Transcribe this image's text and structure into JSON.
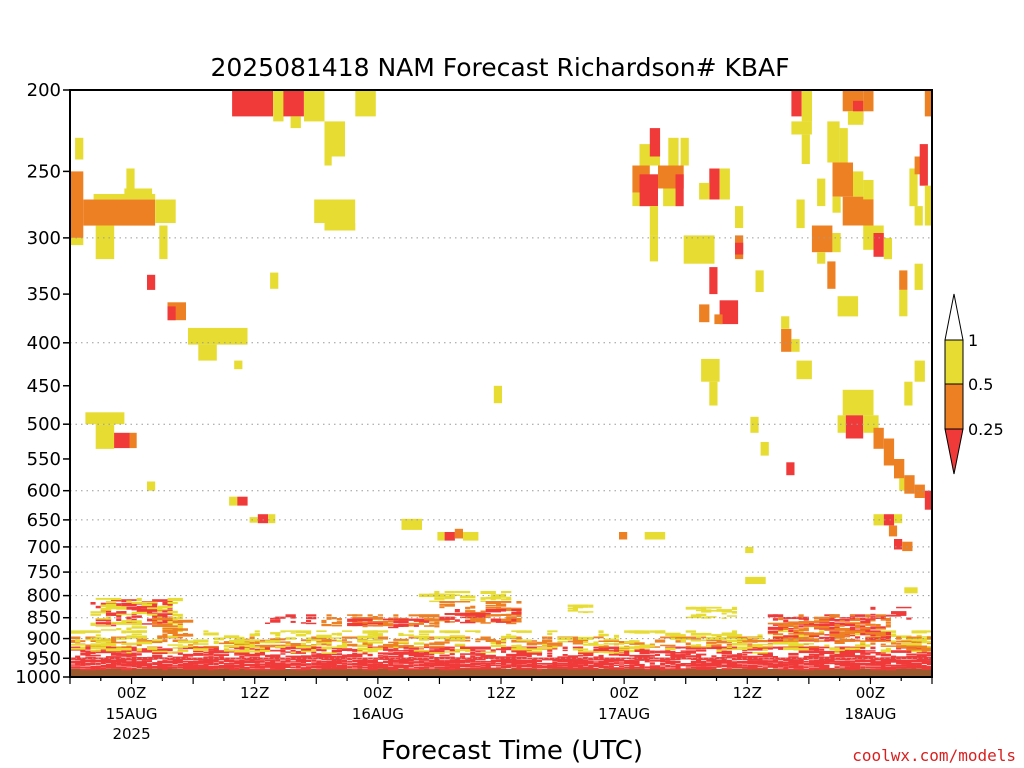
{
  "chart_data": {
    "type": "heatmap",
    "title": "2025081418 NAM Forecast Richardson# KBAF",
    "xlabel": "Forecast Time (UTC)",
    "ylabel": "",
    "credit": "coolwx.com/models",
    "y_axis": {
      "scale": "log-pressure",
      "unit": "hPa",
      "range": [
        1000,
        200
      ],
      "ticks": [
        200,
        250,
        300,
        350,
        400,
        450,
        500,
        550,
        600,
        650,
        700,
        750,
        800,
        850,
        900,
        950,
        1000
      ]
    },
    "x_axis": {
      "unit": "hours after 2025081418",
      "range": [
        0,
        84
      ],
      "ticks": [
        {
          "hour": 6,
          "label": "00Z",
          "sub": "15AUG",
          "sub2": "2025"
        },
        {
          "hour": 18,
          "label": "12Z",
          "sub": "",
          "sub2": ""
        },
        {
          "hour": 30,
          "label": "00Z",
          "sub": "16AUG",
          "sub2": ""
        },
        {
          "hour": 42,
          "label": "12Z",
          "sub": "",
          "sub2": ""
        },
        {
          "hour": 54,
          "label": "00Z",
          "sub": "17AUG",
          "sub2": ""
        },
        {
          "hour": 66,
          "label": "12Z",
          "sub": "",
          "sub2": ""
        },
        {
          "hour": 78,
          "label": "00Z",
          "sub": "18AUG",
          "sub2": ""
        }
      ]
    },
    "gridlines": [
      300,
      400,
      500,
      600,
      650,
      700,
      750,
      800,
      850,
      900,
      950
    ],
    "colorbar": {
      "levels": [
        "0.25",
        "0.5",
        "1"
      ],
      "colors": {
        "lt025": "#f03a3a",
        "b025_05": "#ee8024",
        "b05_1": "#e6dc32",
        "gt1": "#ffffff"
      }
    },
    "category_colors": {
      "r": "#f03a3a",
      "o": "#ee8024",
      "y": "#e6dc32",
      "ground": "#9b5a2e"
    },
    "ground_pressure": 978,
    "patches": [
      {
        "t0": 0,
        "t1": 1.3,
        "p0": 250,
        "p1": 300,
        "c": "o"
      },
      {
        "t0": 0,
        "t1": 1.3,
        "p0": 300,
        "p1": 306,
        "c": "y"
      },
      {
        "t0": 0.5,
        "t1": 1.3,
        "p0": 228,
        "p1": 242,
        "c": "y"
      },
      {
        "t0": 1.3,
        "t1": 8.3,
        "p0": 270,
        "p1": 290,
        "c": "o"
      },
      {
        "t0": 2.3,
        "t1": 8.3,
        "p0": 266,
        "p1": 270,
        "c": "y"
      },
      {
        "t0": 5.3,
        "t1": 8.0,
        "p0": 262,
        "p1": 266,
        "c": "y"
      },
      {
        "t0": 5.5,
        "t1": 6.3,
        "p0": 248,
        "p1": 262,
        "c": "y"
      },
      {
        "t0": 8.3,
        "t1": 10.3,
        "p0": 270,
        "p1": 288,
        "c": "y"
      },
      {
        "t0": 2.5,
        "t1": 4.3,
        "p0": 290,
        "p1": 318,
        "c": "y"
      },
      {
        "t0": 8.7,
        "t1": 9.5,
        "p0": 290,
        "p1": 318,
        "c": "y"
      },
      {
        "t0": 7.5,
        "t1": 8.3,
        "p0": 332,
        "p1": 346,
        "c": "r"
      },
      {
        "t0": 9.5,
        "t1": 11.3,
        "p0": 358,
        "p1": 376,
        "c": "o"
      },
      {
        "t0": 9.5,
        "t1": 10.3,
        "p0": 362,
        "p1": 376,
        "c": "r"
      },
      {
        "t0": 11.5,
        "t1": 17.3,
        "p0": 384,
        "p1": 402,
        "c": "y"
      },
      {
        "t0": 12.5,
        "t1": 14.3,
        "p0": 402,
        "p1": 420,
        "c": "y"
      },
      {
        "t0": 16.0,
        "t1": 16.8,
        "p0": 420,
        "p1": 430,
        "c": "y"
      },
      {
        "t0": 1.5,
        "t1": 5.3,
        "p0": 484,
        "p1": 500,
        "c": "y"
      },
      {
        "t0": 2.5,
        "t1": 4.3,
        "p0": 500,
        "p1": 535,
        "c": "y"
      },
      {
        "t0": 4.3,
        "t1": 5.8,
        "p0": 512,
        "p1": 534,
        "c": "r"
      },
      {
        "t0": 5.8,
        "t1": 6.5,
        "p0": 512,
        "p1": 534,
        "c": "o"
      },
      {
        "t0": 7.5,
        "t1": 8.3,
        "p0": 585,
        "p1": 600,
        "c": "y"
      },
      {
        "t0": 15.5,
        "t1": 16.3,
        "p0": 610,
        "p1": 625,
        "c": "y"
      },
      {
        "t0": 16.3,
        "t1": 17.3,
        "p0": 610,
        "p1": 625,
        "c": "r"
      },
      {
        "t0": 17.5,
        "t1": 18.3,
        "p0": 645,
        "p1": 655,
        "c": "y"
      },
      {
        "t0": 18.3,
        "t1": 19.3,
        "p0": 640,
        "p1": 656,
        "c": "r"
      },
      {
        "t0": 19.3,
        "t1": 20.0,
        "p0": 640,
        "p1": 656,
        "c": "y"
      },
      {
        "t0": 15.8,
        "t1": 19.8,
        "p0": 200,
        "p1": 215,
        "c": "r"
      },
      {
        "t0": 19.8,
        "t1": 20.8,
        "p0": 200,
        "p1": 218,
        "c": "y"
      },
      {
        "t0": 20.8,
        "t1": 22.8,
        "p0": 200,
        "p1": 215,
        "c": "r"
      },
      {
        "t0": 21.5,
        "t1": 22.5,
        "p0": 215,
        "p1": 222,
        "c": "y"
      },
      {
        "t0": 22.8,
        "t1": 24.8,
        "p0": 200,
        "p1": 218,
        "c": "y"
      },
      {
        "t0": 27.8,
        "t1": 29.8,
        "p0": 200,
        "p1": 215,
        "c": "y"
      },
      {
        "t0": 24.8,
        "t1": 26.8,
        "p0": 218,
        "p1": 240,
        "c": "y"
      },
      {
        "t0": 24.8,
        "t1": 25.5,
        "p0": 240,
        "p1": 246,
        "c": "y"
      },
      {
        "t0": 23.8,
        "t1": 27.8,
        "p0": 270,
        "p1": 288,
        "c": "y"
      },
      {
        "t0": 24.8,
        "t1": 27.8,
        "p0": 288,
        "p1": 294,
        "c": "y"
      },
      {
        "t0": 19.5,
        "t1": 20.3,
        "p0": 330,
        "p1": 345,
        "c": "y"
      },
      {
        "t0": 32.3,
        "t1": 34.3,
        "p0": 648,
        "p1": 668,
        "c": "y"
      },
      {
        "t0": 35.8,
        "t1": 36.5,
        "p0": 672,
        "p1": 688,
        "c": "y"
      },
      {
        "t0": 36.5,
        "t1": 37.5,
        "p0": 672,
        "p1": 688,
        "c": "r"
      },
      {
        "t0": 37.5,
        "t1": 38.3,
        "p0": 666,
        "p1": 684,
        "c": "o"
      },
      {
        "t0": 38.3,
        "t1": 39.8,
        "p0": 672,
        "p1": 688,
        "c": "y"
      },
      {
        "t0": 41.3,
        "t1": 42.1,
        "p0": 450,
        "p1": 472,
        "c": "y"
      },
      {
        "t0": 53.5,
        "t1": 54.3,
        "p0": 672,
        "p1": 686,
        "c": "o"
      },
      {
        "t0": 56.0,
        "t1": 58.0,
        "p0": 672,
        "p1": 686,
        "c": "y"
      },
      {
        "t0": 55.5,
        "t1": 57.5,
        "p0": 232,
        "p1": 246,
        "c": "y"
      },
      {
        "t0": 56.5,
        "t1": 57.5,
        "p0": 222,
        "p1": 240,
        "c": "r"
      },
      {
        "t0": 54.8,
        "t1": 56.5,
        "p0": 246,
        "p1": 265,
        "c": "o"
      },
      {
        "t0": 55.5,
        "t1": 57.3,
        "p0": 252,
        "p1": 275,
        "c": "r"
      },
      {
        "t0": 57.3,
        "t1": 59.8,
        "p0": 246,
        "p1": 262,
        "c": "o"
      },
      {
        "t0": 59.0,
        "t1": 59.8,
        "p0": 252,
        "p1": 275,
        "c": "r"
      },
      {
        "t0": 57.8,
        "t1": 59.0,
        "p0": 262,
        "p1": 275,
        "c": "y"
      },
      {
        "t0": 58.3,
        "t1": 59.3,
        "p0": 228,
        "p1": 246,
        "c": "y"
      },
      {
        "t0": 59.5,
        "t1": 60.3,
        "p0": 228,
        "p1": 246,
        "c": "y"
      },
      {
        "t0": 54.8,
        "t1": 55.5,
        "p0": 265,
        "p1": 275,
        "c": "y"
      },
      {
        "t0": 56.5,
        "t1": 57.3,
        "p0": 275,
        "p1": 298,
        "c": "y"
      },
      {
        "t0": 56.5,
        "t1": 57.3,
        "p0": 298,
        "p1": 320,
        "c": "y"
      },
      {
        "t0": 62.3,
        "t1": 63.3,
        "p0": 248,
        "p1": 270,
        "c": "r"
      },
      {
        "t0": 61.3,
        "t1": 62.3,
        "p0": 258,
        "p1": 270,
        "c": "y"
      },
      {
        "t0": 63.3,
        "t1": 64.3,
        "p0": 248,
        "p1": 270,
        "c": "y"
      },
      {
        "t0": 64.8,
        "t1": 65.6,
        "p0": 275,
        "p1": 292,
        "c": "y"
      },
      {
        "t0": 59.8,
        "t1": 62.8,
        "p0": 298,
        "p1": 322,
        "c": "y"
      },
      {
        "t0": 64.8,
        "t1": 65.6,
        "p0": 298,
        "p1": 318,
        "c": "o"
      },
      {
        "t0": 64.8,
        "t1": 65.6,
        "p0": 304,
        "p1": 314,
        "c": "r"
      },
      {
        "t0": 62.3,
        "t1": 63.1,
        "p0": 325,
        "p1": 350,
        "c": "r"
      },
      {
        "t0": 61.3,
        "t1": 62.3,
        "p0": 360,
        "p1": 378,
        "c": "o"
      },
      {
        "t0": 63.3,
        "t1": 65.1,
        "p0": 356,
        "p1": 380,
        "c": "r"
      },
      {
        "t0": 62.8,
        "t1": 63.6,
        "p0": 370,
        "p1": 380,
        "c": "o"
      },
      {
        "t0": 66.8,
        "t1": 67.6,
        "p0": 328,
        "p1": 348,
        "c": "y"
      },
      {
        "t0": 61.5,
        "t1": 63.3,
        "p0": 418,
        "p1": 445,
        "c": "y"
      },
      {
        "t0": 62.3,
        "t1": 63.1,
        "p0": 445,
        "p1": 475,
        "c": "y"
      },
      {
        "t0": 66.3,
        "t1": 67.1,
        "p0": 490,
        "p1": 512,
        "c": "y"
      },
      {
        "t0": 67.3,
        "t1": 68.1,
        "p0": 525,
        "p1": 545,
        "c": "y"
      },
      {
        "t0": 69.8,
        "t1": 70.6,
        "p0": 555,
        "p1": 575,
        "c": "r"
      },
      {
        "t0": 65.8,
        "t1": 66.6,
        "p0": 700,
        "p1": 712,
        "c": "y"
      },
      {
        "t0": 65.8,
        "t1": 67.8,
        "p0": 760,
        "p1": 775,
        "c": "y"
      },
      {
        "t0": 69.3,
        "t1": 70.3,
        "p0": 385,
        "p1": 410,
        "c": "o"
      },
      {
        "t0": 69.3,
        "t1": 70.1,
        "p0": 372,
        "p1": 385,
        "c": "y"
      },
      {
        "t0": 70.3,
        "t1": 71.1,
        "p0": 396,
        "p1": 410,
        "c": "y"
      },
      {
        "t0": 70.8,
        "t1": 72.3,
        "p0": 420,
        "p1": 442,
        "c": "y"
      },
      {
        "t0": 70.3,
        "t1": 71.3,
        "p0": 200,
        "p1": 215,
        "c": "r"
      },
      {
        "t0": 71.3,
        "t1": 72.3,
        "p0": 200,
        "p1": 218,
        "c": "y"
      },
      {
        "t0": 70.3,
        "t1": 72.3,
        "p0": 218,
        "p1": 226,
        "c": "y"
      },
      {
        "t0": 71.3,
        "t1": 72.1,
        "p0": 226,
        "p1": 245,
        "c": "y"
      },
      {
        "t0": 70.8,
        "t1": 71.6,
        "p0": 270,
        "p1": 292,
        "c": "y"
      },
      {
        "t0": 72.8,
        "t1": 73.6,
        "p0": 255,
        "p1": 275,
        "c": "y"
      },
      {
        "t0": 73.8,
        "t1": 75.0,
        "p0": 218,
        "p1": 244,
        "c": "y"
      },
      {
        "t0": 75.0,
        "t1": 75.8,
        "p0": 222,
        "p1": 244,
        "c": "y"
      },
      {
        "t0": 75.3,
        "t1": 77.3,
        "p0": 200,
        "p1": 212,
        "c": "o"
      },
      {
        "t0": 76.3,
        "t1": 77.3,
        "p0": 206,
        "p1": 218,
        "c": "r"
      },
      {
        "t0": 77.3,
        "t1": 78.3,
        "p0": 200,
        "p1": 212,
        "c": "o"
      },
      {
        "t0": 75.8,
        "t1": 77.3,
        "p0": 212,
        "p1": 220,
        "c": "y"
      },
      {
        "t0": 74.3,
        "t1": 76.3,
        "p0": 244,
        "p1": 268,
        "c": "o"
      },
      {
        "t0": 76.3,
        "t1": 77.3,
        "p0": 250,
        "p1": 268,
        "c": "y"
      },
      {
        "t0": 74.3,
        "t1": 75.1,
        "p0": 268,
        "p1": 280,
        "c": "y"
      },
      {
        "t0": 75.3,
        "t1": 78.3,
        "p0": 268,
        "p1": 290,
        "c": "o"
      },
      {
        "t0": 77.3,
        "t1": 78.3,
        "p0": 256,
        "p1": 270,
        "c": "y"
      },
      {
        "t0": 72.3,
        "t1": 74.3,
        "p0": 290,
        "p1": 312,
        "c": "o"
      },
      {
        "t0": 74.3,
        "t1": 75.1,
        "p0": 296,
        "p1": 312,
        "c": "y"
      },
      {
        "t0": 72.8,
        "t1": 73.6,
        "p0": 312,
        "p1": 322,
        "c": "y"
      },
      {
        "t0": 77.3,
        "t1": 79.3,
        "p0": 290,
        "p1": 310,
        "c": "y"
      },
      {
        "t0": 78.3,
        "t1": 79.3,
        "p0": 296,
        "p1": 316,
        "c": "r"
      },
      {
        "t0": 79.3,
        "t1": 80.1,
        "p0": 300,
        "p1": 318,
        "c": "y"
      },
      {
        "t0": 73.8,
        "t1": 74.6,
        "p0": 320,
        "p1": 345,
        "c": "o"
      },
      {
        "t0": 74.8,
        "t1": 76.8,
        "p0": 352,
        "p1": 372,
        "c": "y"
      },
      {
        "t0": 80.8,
        "t1": 81.6,
        "p0": 328,
        "p1": 346,
        "c": "o"
      },
      {
        "t0": 80.8,
        "t1": 81.6,
        "p0": 346,
        "p1": 372,
        "c": "y"
      },
      {
        "t0": 82.3,
        "t1": 83.1,
        "p0": 322,
        "p1": 346,
        "c": "y"
      },
      {
        "t0": 81.8,
        "t1": 82.6,
        "p0": 248,
        "p1": 275,
        "c": "y"
      },
      {
        "t0": 82.3,
        "t1": 83.1,
        "p0": 240,
        "p1": 252,
        "c": "o"
      },
      {
        "t0": 82.8,
        "t1": 83.6,
        "p0": 232,
        "p1": 260,
        "c": "r"
      },
      {
        "t0": 83.3,
        "t1": 84.0,
        "p0": 200,
        "p1": 215,
        "c": "o"
      },
      {
        "t0": 83.3,
        "t1": 84.0,
        "p0": 260,
        "p1": 290,
        "c": "y"
      },
      {
        "t0": 82.3,
        "t1": 83.1,
        "p0": 275,
        "p1": 290,
        "c": "y"
      },
      {
        "t0": 82.3,
        "t1": 83.3,
        "p0": 420,
        "p1": 445,
        "c": "y"
      },
      {
        "t0": 81.3,
        "t1": 82.1,
        "p0": 445,
        "p1": 475,
        "c": "y"
      },
      {
        "t0": 75.3,
        "t1": 78.3,
        "p0": 455,
        "p1": 488,
        "c": "y"
      },
      {
        "t0": 74.8,
        "t1": 75.6,
        "p0": 488,
        "p1": 512,
        "c": "y"
      },
      {
        "t0": 75.6,
        "t1": 77.3,
        "p0": 488,
        "p1": 520,
        "c": "r"
      },
      {
        "t0": 77.3,
        "t1": 78.8,
        "p0": 488,
        "p1": 512,
        "c": "y"
      },
      {
        "t0": 78.3,
        "t1": 79.3,
        "p0": 505,
        "p1": 535,
        "c": "o"
      },
      {
        "t0": 79.3,
        "t1": 80.3,
        "p0": 520,
        "p1": 560,
        "c": "o"
      },
      {
        "t0": 80.3,
        "t1": 81.3,
        "p0": 550,
        "p1": 580,
        "c": "o"
      },
      {
        "t0": 80.8,
        "t1": 81.6,
        "p0": 580,
        "p1": 600,
        "c": "y"
      },
      {
        "t0": 81.3,
        "t1": 82.3,
        "p0": 575,
        "p1": 605,
        "c": "o"
      },
      {
        "t0": 82.3,
        "t1": 83.3,
        "p0": 590,
        "p1": 612,
        "c": "o"
      },
      {
        "t0": 83.3,
        "t1": 84.0,
        "p0": 600,
        "p1": 632,
        "c": "r"
      },
      {
        "t0": 78.3,
        "t1": 79.3,
        "p0": 640,
        "p1": 660,
        "c": "y"
      },
      {
        "t0": 79.3,
        "t1": 80.3,
        "p0": 640,
        "p1": 660,
        "c": "r"
      },
      {
        "t0": 80.3,
        "t1": 81.1,
        "p0": 640,
        "p1": 656,
        "c": "y"
      },
      {
        "t0": 79.8,
        "t1": 80.6,
        "p0": 660,
        "p1": 680,
        "c": "o"
      },
      {
        "t0": 80.3,
        "t1": 81.1,
        "p0": 685,
        "p1": 705,
        "c": "r"
      },
      {
        "t0": 81.1,
        "t1": 82.1,
        "p0": 690,
        "p1": 708,
        "c": "o"
      },
      {
        "t0": 81.3,
        "t1": 82.6,
        "p0": 782,
        "p1": 795,
        "c": "y"
      }
    ],
    "bands": [
      {
        "t0": 0,
        "t1": 84,
        "p0": 948,
        "p1": 978,
        "c": "r",
        "density": 0.92
      },
      {
        "t0": 0,
        "t1": 84,
        "p0": 920,
        "p1": 948,
        "c": "r",
        "density": 0.55
      },
      {
        "t0": 0,
        "t1": 84,
        "p0": 895,
        "p1": 920,
        "c": "o",
        "density": 0.3
      },
      {
        "t0": 0,
        "t1": 84,
        "p0": 880,
        "p1": 935,
        "c": "y",
        "density": 0.22
      },
      {
        "t0": 2,
        "t1": 10,
        "p0": 808,
        "p1": 870,
        "c": "r",
        "density": 0.45
      },
      {
        "t0": 2,
        "t1": 11,
        "p0": 805,
        "p1": 880,
        "c": "y",
        "density": 0.25
      },
      {
        "t0": 8,
        "t1": 12,
        "p0": 850,
        "p1": 895,
        "c": "o",
        "density": 0.35
      },
      {
        "t0": 19,
        "t1": 24,
        "p0": 842,
        "p1": 862,
        "c": "r",
        "density": 0.4
      },
      {
        "t0": 24,
        "t1": 36,
        "p0": 842,
        "p1": 870,
        "c": "o",
        "density": 0.45
      },
      {
        "t0": 27,
        "t1": 35,
        "p0": 852,
        "p1": 872,
        "c": "r",
        "density": 0.35
      },
      {
        "t0": 34,
        "t1": 43,
        "p0": 790,
        "p1": 812,
        "c": "y",
        "density": 0.5
      },
      {
        "t0": 36,
        "t1": 44,
        "p0": 812,
        "p1": 862,
        "c": "o",
        "density": 0.3
      },
      {
        "t0": 36,
        "t1": 44,
        "p0": 830,
        "p1": 860,
        "c": "r",
        "density": 0.3
      },
      {
        "t0": 48,
        "t1": 51,
        "p0": 820,
        "p1": 836,
        "c": "y",
        "density": 0.5
      },
      {
        "t0": 60,
        "t1": 65,
        "p0": 825,
        "p1": 850,
        "c": "y",
        "density": 0.4
      },
      {
        "t0": 68,
        "t1": 80,
        "p0": 842,
        "p1": 905,
        "c": "r",
        "density": 0.35
      },
      {
        "t0": 68,
        "t1": 80,
        "p0": 842,
        "p1": 905,
        "c": "o",
        "density": 0.3
      },
      {
        "t0": 78,
        "t1": 82,
        "p0": 825,
        "p1": 855,
        "c": "r",
        "density": 0.3
      },
      {
        "t0": 80,
        "t1": 84,
        "p0": 895,
        "p1": 930,
        "c": "o",
        "density": 0.4
      }
    ]
  }
}
